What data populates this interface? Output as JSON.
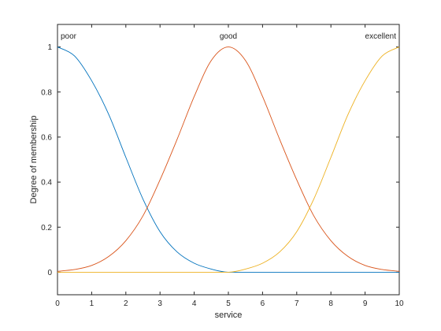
{
  "chart_data": {
    "type": "line",
    "title": "",
    "xlabel": "service",
    "ylabel": "Degree of membership",
    "xlim": [
      0,
      10
    ],
    "ylim": [
      -0.1,
      1.1
    ],
    "grid": false,
    "x_ticks": [
      "0",
      "1",
      "2",
      "3",
      "4",
      "5",
      "6",
      "7",
      "8",
      "9",
      "10"
    ],
    "y_ticks": [
      "0",
      "0.2",
      "0.4",
      "0.6",
      "0.8",
      "1"
    ],
    "series": [
      {
        "name": "poor",
        "color": "#0072BD",
        "x": [
          0,
          0.5,
          1,
          1.5,
          2,
          2.5,
          3,
          3.5,
          4,
          4.5,
          5,
          6,
          7,
          8,
          9,
          10
        ],
        "values": [
          1.0,
          0.96,
          0.85,
          0.7,
          0.51,
          0.325,
          0.18,
          0.09,
          0.04,
          0.014,
          0.0,
          0.0,
          0.0,
          0.0,
          0.0,
          0.0
        ]
      },
      {
        "name": "good",
        "color": "#D95319",
        "x": [
          0,
          0.5,
          1,
          1.5,
          2,
          2.5,
          3,
          3.5,
          4,
          4.5,
          5,
          5.5,
          6,
          6.5,
          7,
          7.5,
          8,
          8.5,
          9,
          9.5,
          10
        ],
        "values": [
          0.004,
          0.012,
          0.03,
          0.07,
          0.14,
          0.25,
          0.41,
          0.59,
          0.78,
          0.94,
          1.0,
          0.94,
          0.78,
          0.59,
          0.41,
          0.25,
          0.14,
          0.07,
          0.03,
          0.012,
          0.004
        ]
      },
      {
        "name": "excellent",
        "color": "#EDB120",
        "x": [
          0,
          1,
          2,
          3,
          4,
          5,
          5.5,
          6,
          6.5,
          7,
          7.5,
          8,
          8.5,
          9,
          9.5,
          10
        ],
        "values": [
          0.0,
          0.0,
          0.0,
          0.0,
          0.0,
          0.0,
          0.014,
          0.04,
          0.09,
          0.18,
          0.325,
          0.51,
          0.7,
          0.85,
          0.96,
          1.0
        ]
      }
    ],
    "mf_labels": [
      {
        "text": "poor",
        "x": 0
      },
      {
        "text": "good",
        "x": 5
      },
      {
        "text": "excellent",
        "x": 10
      }
    ],
    "axis_color": "#262626"
  }
}
